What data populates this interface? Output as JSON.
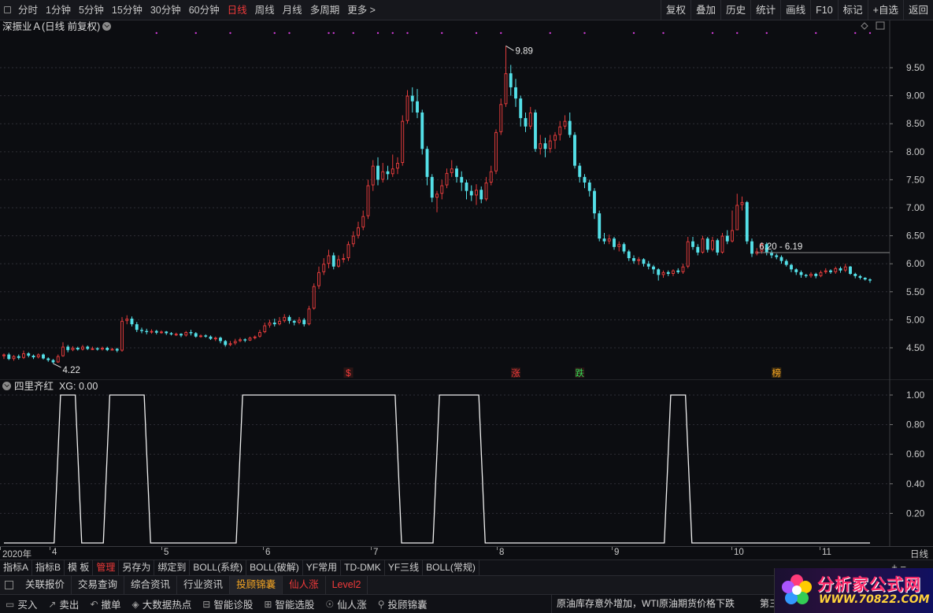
{
  "toolbar": {
    "timeframes": [
      "分时",
      "1分钟",
      "5分钟",
      "15分钟",
      "30分钟",
      "60分钟",
      "日线",
      "周线",
      "月线",
      "多周期",
      "更多 >"
    ],
    "active_timeframe": "日线",
    "right_buttons": [
      "复权",
      "叠加",
      "历史",
      "统计",
      "画线",
      "F10",
      "标记",
      "+自选",
      "返回"
    ]
  },
  "main_chart": {
    "title": "深振业Ａ(日线 前复权)",
    "price_labels": [
      "9.50",
      "9.00",
      "8.50",
      "8.00",
      "7.50",
      "7.00",
      "6.50",
      "6.00",
      "5.50",
      "5.00",
      "4.50"
    ],
    "annotations": {
      "high": "9.89",
      "low": "4.22",
      "current_range": "6.20 - 6.19"
    },
    "signal_markers": [
      "$",
      "涨",
      "跌",
      "榜"
    ],
    "colors": {
      "up": "#e03b3b",
      "down": "#54e0e8",
      "grid": "#2e2f36",
      "text": "#c8c8c8"
    }
  },
  "chart_data": {
    "type": "candlestick",
    "title": "深振业Ａ(日线 前复权)",
    "ylim": [
      4.2,
      9.9
    ],
    "x_ticks": [
      "2020年",
      "4",
      "5",
      "6",
      "7",
      "8",
      "9",
      "10",
      "11"
    ],
    "candles": [
      [
        4.35,
        4.38,
        4.4,
        4.3
      ],
      [
        4.38,
        4.3,
        4.41,
        4.28
      ],
      [
        4.3,
        4.35,
        4.37,
        4.27
      ],
      [
        4.35,
        4.32,
        4.38,
        4.29
      ],
      [
        4.32,
        4.4,
        4.45,
        4.3
      ],
      [
        4.4,
        4.36,
        4.42,
        4.33
      ],
      [
        4.36,
        4.33,
        4.38,
        4.3
      ],
      [
        4.33,
        4.38,
        4.4,
        4.31
      ],
      [
        4.38,
        4.31,
        4.4,
        4.29
      ],
      [
        4.31,
        4.28,
        4.33,
        4.25
      ],
      [
        4.28,
        4.24,
        4.3,
        4.22
      ],
      [
        4.24,
        4.35,
        4.38,
        4.23
      ],
      [
        4.35,
        4.52,
        4.6,
        4.34
      ],
      [
        4.52,
        4.46,
        4.55,
        4.42
      ],
      [
        4.46,
        4.5,
        4.53,
        4.44
      ],
      [
        4.5,
        4.47,
        4.52,
        4.45
      ],
      [
        4.47,
        4.52,
        4.55,
        4.45
      ],
      [
        4.52,
        4.48,
        4.54,
        4.46
      ],
      [
        4.48,
        4.49,
        4.52,
        4.46
      ],
      [
        4.49,
        4.47,
        4.51,
        4.45
      ],
      [
        4.47,
        4.5,
        4.52,
        4.45
      ],
      [
        4.5,
        4.46,
        4.52,
        4.44
      ],
      [
        4.46,
        4.48,
        4.5,
        4.45
      ],
      [
        4.48,
        4.45,
        4.5,
        4.42
      ],
      [
        4.45,
        4.98,
        5.05,
        4.43
      ],
      [
        4.98,
        5.02,
        5.08,
        4.92
      ],
      [
        5.02,
        4.92,
        5.06,
        4.88
      ],
      [
        4.92,
        4.82,
        4.96,
        4.78
      ],
      [
        4.82,
        4.8,
        4.86,
        4.76
      ],
      [
        4.8,
        4.78,
        4.84,
        4.74
      ],
      [
        4.78,
        4.8,
        4.83,
        4.75
      ],
      [
        4.8,
        4.77,
        4.82,
        4.74
      ],
      [
        4.77,
        4.79,
        4.81,
        4.75
      ],
      [
        4.79,
        4.76,
        4.8,
        4.73
      ],
      [
        4.76,
        4.74,
        4.78,
        4.72
      ],
      [
        4.74,
        4.75,
        4.77,
        4.71
      ],
      [
        4.75,
        4.72,
        4.76,
        4.69
      ],
      [
        4.72,
        4.78,
        4.8,
        4.7
      ],
      [
        4.78,
        4.76,
        4.82,
        4.72
      ],
      [
        4.76,
        4.7,
        4.78,
        4.68
      ],
      [
        4.7,
        4.72,
        4.74,
        4.68
      ],
      [
        4.72,
        4.7,
        4.74,
        4.68
      ],
      [
        4.7,
        4.66,
        4.72,
        4.64
      ],
      [
        4.66,
        4.68,
        4.7,
        4.62
      ],
      [
        4.68,
        4.62,
        4.7,
        4.58
      ],
      [
        4.62,
        4.55,
        4.64,
        4.52
      ],
      [
        4.55,
        4.58,
        4.62,
        4.53
      ],
      [
        4.58,
        4.62,
        4.66,
        4.55
      ],
      [
        4.62,
        4.65,
        4.68,
        4.6
      ],
      [
        4.65,
        4.63,
        4.67,
        4.6
      ],
      [
        4.63,
        4.68,
        4.7,
        4.62
      ],
      [
        4.68,
        4.7,
        4.72,
        4.65
      ],
      [
        4.7,
        4.78,
        4.82,
        4.68
      ],
      [
        4.78,
        4.9,
        4.95,
        4.76
      ],
      [
        4.9,
        4.95,
        5.0,
        4.86
      ],
      [
        4.95,
        4.92,
        5.02,
        4.88
      ],
      [
        4.92,
        4.98,
        5.05,
        4.9
      ],
      [
        4.98,
        5.05,
        5.1,
        4.95
      ],
      [
        5.05,
        4.98,
        5.08,
        4.93
      ],
      [
        4.98,
        4.95,
        5.0,
        4.9
      ],
      [
        4.95,
        5.0,
        5.05,
        4.92
      ],
      [
        5.0,
        4.92,
        5.03,
        4.88
      ],
      [
        4.92,
        5.2,
        5.25,
        4.9
      ],
      [
        5.2,
        5.6,
        5.65,
        5.18
      ],
      [
        5.6,
        5.85,
        5.95,
        5.55
      ],
      [
        5.85,
        6.0,
        6.1,
        5.8
      ],
      [
        6.0,
        6.15,
        6.25,
        5.92
      ],
      [
        6.15,
        5.95,
        6.2,
        5.9
      ],
      [
        5.95,
        6.08,
        6.15,
        5.93
      ],
      [
        6.08,
        6.1,
        6.18,
        6.02
      ],
      [
        6.1,
        6.35,
        6.4,
        6.05
      ],
      [
        6.35,
        6.5,
        6.58,
        6.3
      ],
      [
        6.5,
        6.65,
        6.75,
        6.45
      ],
      [
        6.65,
        6.85,
        6.95,
        6.6
      ],
      [
        6.85,
        7.4,
        7.5,
        6.8
      ],
      [
        7.4,
        7.75,
        7.85,
        7.3
      ],
      [
        7.75,
        7.5,
        7.9,
        7.4
      ],
      [
        7.5,
        7.65,
        7.8,
        7.45
      ],
      [
        7.65,
        7.6,
        7.75,
        7.5
      ],
      [
        7.6,
        7.7,
        7.95,
        7.55
      ],
      [
        7.7,
        7.8,
        7.9,
        7.6
      ],
      [
        7.8,
        8.55,
        8.65,
        7.75
      ],
      [
        8.55,
        9.0,
        9.1,
        8.5
      ],
      [
        9.0,
        8.9,
        9.15,
        8.7
      ],
      [
        8.9,
        8.7,
        9.12,
        8.6
      ],
      [
        8.7,
        8.05,
        8.75,
        7.95
      ],
      [
        8.05,
        7.55,
        8.1,
        7.4
      ],
      [
        7.55,
        7.18,
        7.6,
        7.1
      ],
      [
        7.18,
        7.25,
        7.3,
        6.92
      ],
      [
        7.25,
        7.4,
        7.5,
        7.15
      ],
      [
        7.4,
        7.62,
        7.7,
        7.35
      ],
      [
        7.62,
        7.7,
        7.85,
        7.55
      ],
      [
        7.7,
        7.55,
        7.75,
        7.45
      ],
      [
        7.55,
        7.45,
        7.65,
        7.3
      ],
      [
        7.45,
        7.3,
        7.5,
        7.15
      ],
      [
        7.3,
        7.22,
        7.4,
        7.12
      ],
      [
        7.22,
        7.32,
        7.42,
        7.05
      ],
      [
        7.32,
        7.15,
        7.38,
        7.08
      ],
      [
        7.15,
        7.45,
        7.55,
        7.12
      ],
      [
        7.45,
        7.65,
        7.75,
        7.4
      ],
      [
        7.65,
        8.35,
        8.4,
        7.6
      ],
      [
        8.35,
        8.85,
        8.95,
        8.3
      ],
      [
        8.85,
        9.4,
        9.89,
        8.8
      ],
      [
        9.4,
        9.15,
        9.55,
        9.0
      ],
      [
        9.15,
        8.95,
        9.3,
        8.8
      ],
      [
        8.95,
        8.6,
        9.0,
        8.45
      ],
      [
        8.6,
        8.45,
        8.7,
        8.35
      ],
      [
        8.45,
        8.7,
        8.8,
        8.4
      ],
      [
        8.7,
        8.05,
        8.75,
        8.0
      ],
      [
        8.05,
        8.15,
        8.3,
        7.95
      ],
      [
        8.15,
        8.05,
        8.25,
        7.9
      ],
      [
        8.05,
        8.2,
        8.3,
        7.98
      ],
      [
        8.2,
        8.3,
        8.35,
        8.05
      ],
      [
        8.3,
        8.45,
        8.55,
        8.2
      ],
      [
        8.45,
        8.55,
        8.65,
        8.4
      ],
      [
        8.55,
        8.3,
        8.7,
        8.25
      ],
      [
        8.3,
        7.75,
        8.35,
        7.7
      ],
      [
        7.75,
        7.55,
        7.8,
        7.45
      ],
      [
        7.55,
        7.45,
        7.6,
        7.35
      ],
      [
        7.45,
        7.3,
        7.5,
        7.2
      ],
      [
        7.3,
        6.9,
        7.35,
        6.8
      ],
      [
        6.9,
        6.45,
        6.95,
        6.4
      ],
      [
        6.45,
        6.4,
        6.55,
        6.35
      ],
      [
        6.4,
        6.45,
        6.52,
        6.35
      ],
      [
        6.45,
        6.3,
        6.48,
        6.25
      ],
      [
        6.3,
        6.35,
        6.4,
        6.22
      ],
      [
        6.35,
        6.22,
        6.38,
        6.18
      ],
      [
        6.22,
        6.1,
        6.25,
        6.05
      ],
      [
        6.1,
        6.05,
        6.15,
        6.0
      ],
      [
        6.05,
        6.08,
        6.12,
        5.98
      ],
      [
        6.08,
        6.0,
        6.1,
        5.95
      ],
      [
        6.0,
        5.95,
        6.05,
        5.9
      ],
      [
        5.95,
        5.9,
        5.98,
        5.82
      ],
      [
        5.9,
        5.8,
        5.92,
        5.7
      ],
      [
        5.8,
        5.85,
        5.88,
        5.75
      ],
      [
        5.85,
        5.82,
        5.88,
        5.78
      ],
      [
        5.82,
        5.88,
        5.9,
        5.78
      ],
      [
        5.88,
        5.85,
        5.92,
        5.82
      ],
      [
        5.85,
        5.95,
        6.0,
        5.82
      ],
      [
        5.95,
        6.4,
        6.48,
        5.92
      ],
      [
        6.4,
        6.3,
        6.48,
        6.25
      ],
      [
        6.3,
        6.2,
        6.35,
        6.15
      ],
      [
        6.2,
        6.45,
        6.5,
        6.18
      ],
      [
        6.45,
        6.25,
        6.48,
        6.2
      ],
      [
        6.25,
        6.42,
        6.48,
        6.22
      ],
      [
        6.42,
        6.2,
        6.45,
        6.15
      ],
      [
        6.2,
        6.5,
        6.55,
        6.18
      ],
      [
        6.5,
        6.4,
        6.6,
        6.35
      ],
      [
        6.4,
        6.6,
        6.95,
        6.38
      ],
      [
        6.6,
        7.05,
        7.25,
        6.95
      ],
      [
        7.05,
        7.1,
        7.2,
        6.95
      ],
      [
        7.1,
        6.4,
        7.12,
        6.35
      ],
      [
        6.4,
        6.18,
        6.45,
        6.12
      ],
      [
        6.18,
        6.22,
        6.28,
        6.15
      ],
      [
        6.22,
        6.35,
        6.38,
        6.18
      ],
      [
        6.35,
        6.2,
        6.38,
        6.15
      ],
      [
        6.2,
        6.15,
        6.24,
        6.1
      ],
      [
        6.15,
        6.12,
        6.18,
        6.08
      ],
      [
        6.12,
        6.05,
        6.15,
        6.0
      ],
      [
        6.05,
        5.98,
        6.08,
        5.95
      ],
      [
        5.98,
        5.9,
        6.0,
        5.85
      ],
      [
        5.9,
        5.85,
        5.92,
        5.8
      ],
      [
        5.85,
        5.8,
        5.88,
        5.75
      ],
      [
        5.8,
        5.78,
        5.82,
        5.75
      ],
      [
        5.78,
        5.82,
        5.85,
        5.75
      ],
      [
        5.82,
        5.78,
        5.84,
        5.74
      ],
      [
        5.78,
        5.85,
        5.88,
        5.76
      ],
      [
        5.85,
        5.88,
        5.92,
        5.82
      ],
      [
        5.88,
        5.85,
        5.9,
        5.82
      ],
      [
        5.85,
        5.92,
        5.95,
        5.82
      ],
      [
        5.92,
        5.88,
        5.95,
        5.84
      ],
      [
        5.88,
        5.95,
        6.0,
        5.85
      ],
      [
        5.95,
        5.82,
        5.96,
        5.8
      ],
      [
        5.82,
        5.78,
        5.84,
        5.74
      ],
      [
        5.78,
        5.75,
        5.8,
        5.72
      ],
      [
        5.75,
        5.72,
        5.76,
        5.7
      ],
      [
        5.72,
        5.7,
        5.74,
        5.66
      ]
    ]
  },
  "sub_chart": {
    "title": "四里齐红",
    "readout": "XG: 0.00",
    "y_labels": [
      "1.00",
      "0.80",
      "0.60",
      "0.40",
      "0.20"
    ],
    "signal_ranges": [
      [
        12,
        14
      ],
      [
        22,
        28
      ],
      [
        49,
        79
      ],
      [
        89,
        96
      ],
      [
        136,
        138
      ]
    ]
  },
  "date_axis": {
    "labels": [
      "2020年",
      "4",
      "5",
      "6",
      "7",
      "8",
      "9",
      "10",
      "11"
    ],
    "period": "日线"
  },
  "indicator_tabs": [
    "指标A",
    "指标B",
    "模 板",
    "管理",
    "另存为",
    "绑定到",
    "BOLL(系统)",
    "BOLL(破解)",
    "YF常用",
    "TD-DMK",
    "YF三线",
    "BOLL(常规)"
  ],
  "active_indicator_tab": "管理",
  "info_tabs": [
    "关联报价",
    "交易查询",
    "综合资讯",
    "行业资讯",
    "投顾锦囊",
    "仙人涨",
    "Level2"
  ],
  "bottom_buttons": [
    "买入",
    "卖出",
    "撤单",
    "大数据热点",
    "智能诊股",
    "智能选股",
    "仙人涨",
    "投顾锦囊"
  ],
  "news_ticker": "原油库存意外增加，WTI原油期货价格下跌",
  "news_ticker_tail": "第三",
  "logo": {
    "name": "分析家公式网",
    "url": "WWW.70822.COM"
  }
}
